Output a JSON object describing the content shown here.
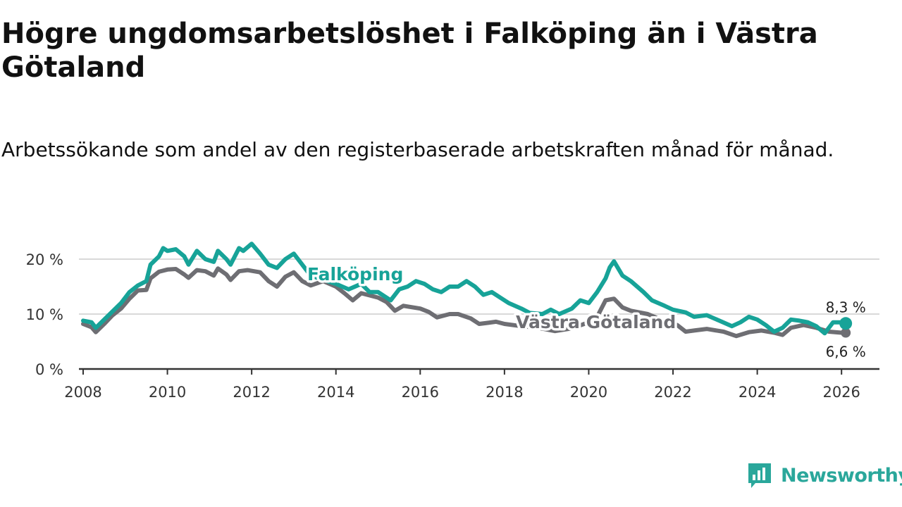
{
  "title": "Högre ungdomsarbetslöshet i Falköping än i Västra Götaland",
  "subtitle": "Arbetssökande som andel av den registerbaserade arbetskraften månad för månad.",
  "brand": {
    "name": "Newsworthy",
    "icon": "newsworthy-logo-icon"
  },
  "colors": {
    "falkoping": "#17a398",
    "vastra": "#6e6e73",
    "grid": "#d9d9d9",
    "axis": "#333333"
  },
  "chart_data": {
    "type": "line",
    "title": "Högre ungdomsarbetslöshet i Falköping än i Västra Götaland",
    "xlabel": "",
    "ylabel": "",
    "xlim": [
      2007.9,
      2026.9
    ],
    "ylim": [
      0,
      20
    ],
    "y_ticks": [
      {
        "value": 0,
        "label": "0 %"
      },
      {
        "value": 10,
        "label": "10 %"
      },
      {
        "value": 20,
        "label": "20 %"
      }
    ],
    "x_ticks": [
      {
        "value": 2008,
        "label": "2008"
      },
      {
        "value": 2010,
        "label": "2010"
      },
      {
        "value": 2012,
        "label": "2012"
      },
      {
        "value": 2014,
        "label": "2014"
      },
      {
        "value": 2016,
        "label": "2016"
      },
      {
        "value": 2018,
        "label": "2018"
      },
      {
        "value": 2020,
        "label": "2020"
      },
      {
        "value": 2022,
        "label": "2022"
      },
      {
        "value": 2024,
        "label": "2024"
      },
      {
        "value": 2026,
        "label": "2026"
      }
    ],
    "series": [
      {
        "name": "Västra Götaland",
        "color": "#6e6e73",
        "end_label": "6,6 %",
        "points": [
          [
            2008.0,
            8.2
          ],
          [
            2008.2,
            7.6
          ],
          [
            2008.3,
            6.7
          ],
          [
            2008.5,
            8.2
          ],
          [
            2008.7,
            9.8
          ],
          [
            2008.9,
            11.0
          ],
          [
            2009.1,
            12.8
          ],
          [
            2009.3,
            14.3
          ],
          [
            2009.5,
            14.4
          ],
          [
            2009.6,
            16.5
          ],
          [
            2009.8,
            17.7
          ],
          [
            2010.0,
            18.1
          ],
          [
            2010.2,
            18.2
          ],
          [
            2010.4,
            17.2
          ],
          [
            2010.5,
            16.6
          ],
          [
            2010.7,
            18.0
          ],
          [
            2010.9,
            17.8
          ],
          [
            2011.1,
            17.0
          ],
          [
            2011.2,
            18.3
          ],
          [
            2011.4,
            17.2
          ],
          [
            2011.5,
            16.2
          ],
          [
            2011.7,
            17.8
          ],
          [
            2011.9,
            18.0
          ],
          [
            2012.2,
            17.6
          ],
          [
            2012.4,
            16.0
          ],
          [
            2012.6,
            15.0
          ],
          [
            2012.8,
            16.8
          ],
          [
            2013.0,
            17.6
          ],
          [
            2013.2,
            16.0
          ],
          [
            2013.4,
            15.2
          ],
          [
            2013.7,
            16.0
          ],
          [
            2014.0,
            15.0
          ],
          [
            2014.2,
            13.8
          ],
          [
            2014.4,
            12.5
          ],
          [
            2014.6,
            13.8
          ],
          [
            2015.0,
            13.0
          ],
          [
            2015.2,
            12.2
          ],
          [
            2015.4,
            10.6
          ],
          [
            2015.6,
            11.5
          ],
          [
            2016.0,
            11.0
          ],
          [
            2016.2,
            10.4
          ],
          [
            2016.4,
            9.4
          ],
          [
            2016.7,
            10.0
          ],
          [
            2016.9,
            10.0
          ],
          [
            2017.2,
            9.2
          ],
          [
            2017.4,
            8.2
          ],
          [
            2017.6,
            8.4
          ],
          [
            2017.8,
            8.6
          ],
          [
            2018.0,
            8.2
          ],
          [
            2018.4,
            7.8
          ],
          [
            2018.8,
            7.5
          ],
          [
            2019.2,
            6.9
          ],
          [
            2019.6,
            7.4
          ],
          [
            2020.0,
            8.5
          ],
          [
            2020.2,
            9.5
          ],
          [
            2020.4,
            12.5
          ],
          [
            2020.6,
            12.8
          ],
          [
            2020.8,
            11.2
          ],
          [
            2021.0,
            10.6
          ],
          [
            2021.4,
            10.0
          ],
          [
            2021.8,
            8.7
          ],
          [
            2022.1,
            8.0
          ],
          [
            2022.3,
            6.8
          ],
          [
            2022.5,
            7.0
          ],
          [
            2022.8,
            7.3
          ],
          [
            2023.2,
            6.8
          ],
          [
            2023.5,
            6.0
          ],
          [
            2023.8,
            6.7
          ],
          [
            2024.1,
            7.0
          ],
          [
            2024.4,
            6.6
          ],
          [
            2024.6,
            6.2
          ],
          [
            2024.8,
            7.5
          ],
          [
            2025.1,
            8.0
          ],
          [
            2025.4,
            7.5
          ],
          [
            2025.7,
            6.8
          ],
          [
            2026.0,
            6.6
          ],
          [
            2026.1,
            6.6
          ]
        ]
      },
      {
        "name": "Falköping",
        "color": "#17a398",
        "end_label": "8,3 %",
        "points": [
          [
            2008.0,
            8.8
          ],
          [
            2008.2,
            8.5
          ],
          [
            2008.3,
            7.5
          ],
          [
            2008.5,
            9.0
          ],
          [
            2008.7,
            10.5
          ],
          [
            2008.9,
            12.0
          ],
          [
            2009.1,
            14.0
          ],
          [
            2009.3,
            15.2
          ],
          [
            2009.5,
            16.0
          ],
          [
            2009.6,
            19.0
          ],
          [
            2009.8,
            20.5
          ],
          [
            2009.9,
            22.0
          ],
          [
            2010.0,
            21.5
          ],
          [
            2010.2,
            21.8
          ],
          [
            2010.4,
            20.5
          ],
          [
            2010.5,
            19.0
          ],
          [
            2010.7,
            21.5
          ],
          [
            2010.9,
            20.0
          ],
          [
            2011.1,
            19.5
          ],
          [
            2011.2,
            21.5
          ],
          [
            2011.4,
            20.0
          ],
          [
            2011.5,
            19.0
          ],
          [
            2011.7,
            22.0
          ],
          [
            2011.8,
            21.5
          ],
          [
            2012.0,
            22.8
          ],
          [
            2012.2,
            21.0
          ],
          [
            2012.4,
            19.0
          ],
          [
            2012.6,
            18.4
          ],
          [
            2012.8,
            20.0
          ],
          [
            2013.0,
            21.0
          ],
          [
            2013.2,
            19.0
          ],
          [
            2013.4,
            17.0
          ],
          [
            2013.6,
            16.5
          ],
          [
            2014.0,
            15.5
          ],
          [
            2014.3,
            14.5
          ],
          [
            2014.6,
            15.5
          ],
          [
            2014.8,
            14.0
          ],
          [
            2015.0,
            14.0
          ],
          [
            2015.2,
            13.0
          ],
          [
            2015.3,
            12.5
          ],
          [
            2015.5,
            14.5
          ],
          [
            2015.7,
            15.0
          ],
          [
            2015.9,
            16.0
          ],
          [
            2016.1,
            15.5
          ],
          [
            2016.3,
            14.5
          ],
          [
            2016.5,
            14.0
          ],
          [
            2016.7,
            15.0
          ],
          [
            2016.9,
            15.0
          ],
          [
            2017.1,
            16.0
          ],
          [
            2017.3,
            15.0
          ],
          [
            2017.5,
            13.5
          ],
          [
            2017.7,
            14.0
          ],
          [
            2017.9,
            13.0
          ],
          [
            2018.1,
            12.0
          ],
          [
            2018.4,
            11.0
          ],
          [
            2018.6,
            10.2
          ],
          [
            2018.9,
            10.0
          ],
          [
            2019.1,
            10.8
          ],
          [
            2019.3,
            10.0
          ],
          [
            2019.6,
            11.0
          ],
          [
            2019.8,
            12.5
          ],
          [
            2020.0,
            12.0
          ],
          [
            2020.2,
            14.0
          ],
          [
            2020.4,
            16.5
          ],
          [
            2020.5,
            18.5
          ],
          [
            2020.6,
            19.6
          ],
          [
            2020.8,
            17.0
          ],
          [
            2021.0,
            16.0
          ],
          [
            2021.3,
            14.0
          ],
          [
            2021.5,
            12.5
          ],
          [
            2021.8,
            11.5
          ],
          [
            2022.0,
            10.8
          ],
          [
            2022.3,
            10.3
          ],
          [
            2022.5,
            9.5
          ],
          [
            2022.8,
            9.8
          ],
          [
            2023.1,
            8.8
          ],
          [
            2023.4,
            7.8
          ],
          [
            2023.6,
            8.5
          ],
          [
            2023.8,
            9.5
          ],
          [
            2024.0,
            9.0
          ],
          [
            2024.2,
            8.0
          ],
          [
            2024.4,
            6.8
          ],
          [
            2024.6,
            7.5
          ],
          [
            2024.8,
            9.0
          ],
          [
            2025.0,
            8.8
          ],
          [
            2025.2,
            8.5
          ],
          [
            2025.4,
            7.8
          ],
          [
            2025.6,
            6.5
          ],
          [
            2025.8,
            8.5
          ],
          [
            2026.0,
            8.5
          ],
          [
            2026.1,
            8.3
          ]
        ]
      }
    ],
    "annotations": [
      {
        "text": "Falköping",
        "series": "Falköping"
      },
      {
        "text": "Västra Götaland",
        "series": "Västra Götaland"
      }
    ]
  }
}
